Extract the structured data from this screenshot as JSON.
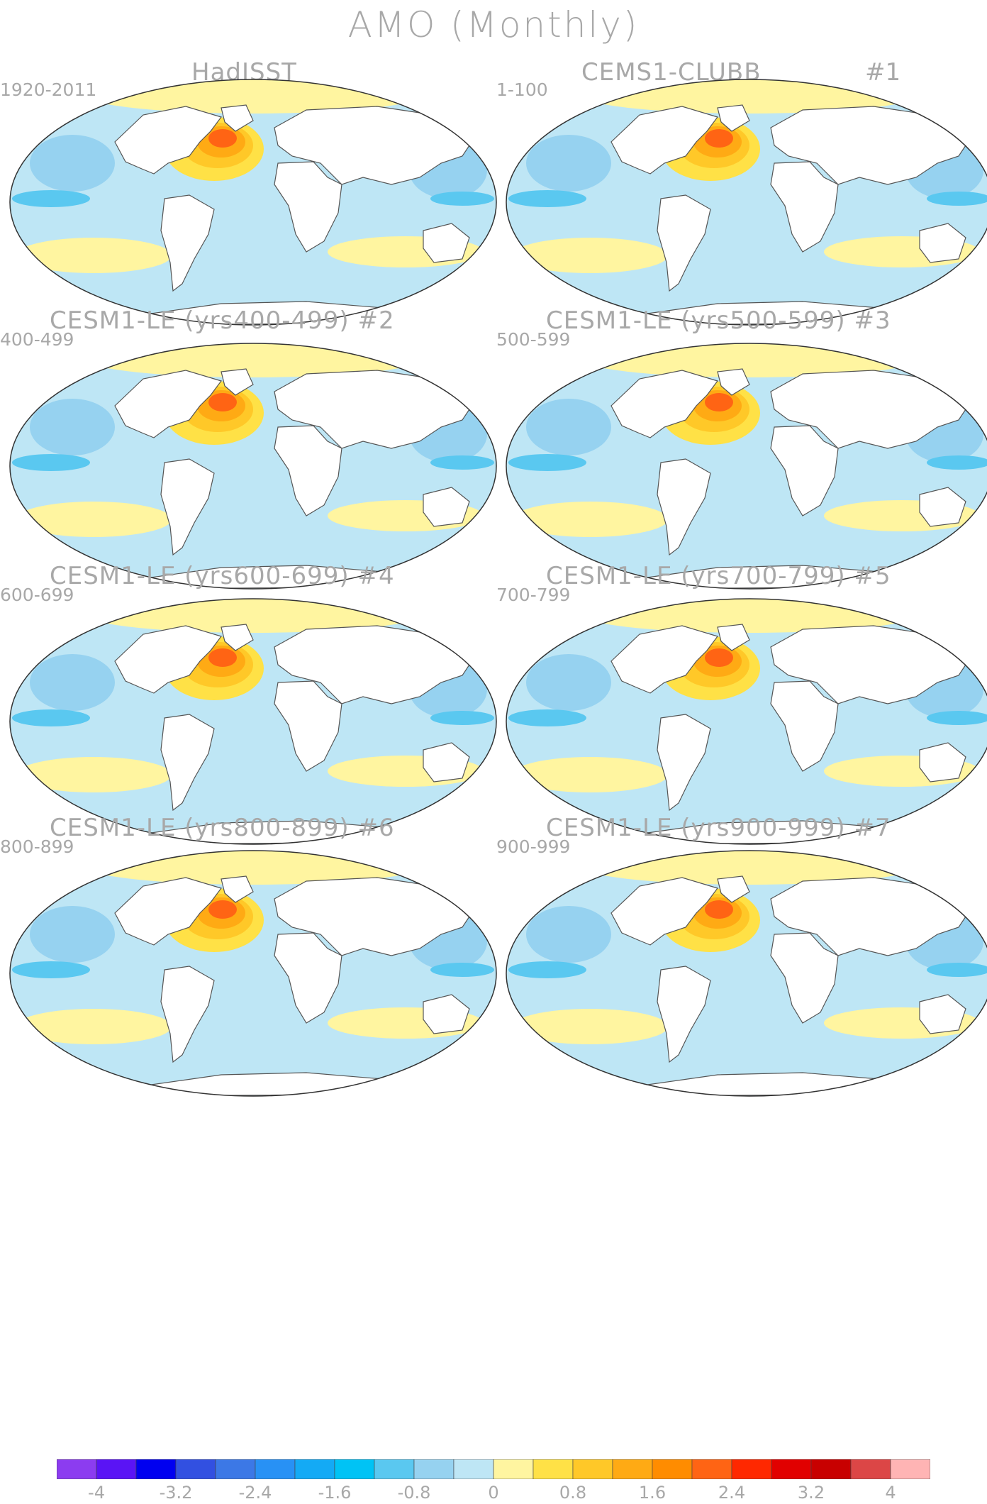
{
  "title": "AMO (Monthly)",
  "panels": [
    {
      "title": "HadISST",
      "tag": "",
      "years": "1920-2011"
    },
    {
      "title": "CEMS1-CLUBB",
      "tag": "#1",
      "years": "1-100"
    },
    {
      "title": "CESM1-LE (yrs400-499)",
      "tag": "#2",
      "years": "400-499"
    },
    {
      "title": "CESM1-LE (yrs500-599)",
      "tag": "#3",
      "years": "500-599"
    },
    {
      "title": "CESM1-LE (yrs600-699)",
      "tag": "#4",
      "years": "600-699"
    },
    {
      "title": "CESM1-LE (yrs700-799)",
      "tag": "#5",
      "years": "700-799"
    },
    {
      "title": "CESM1-LE (yrs800-899)",
      "tag": "#6",
      "years": "800-899"
    },
    {
      "title": "CESM1-LE (yrs900-999)",
      "tag": "#7",
      "years": "900-999"
    }
  ],
  "colorbar": {
    "colors": [
      "#8c3cf0",
      "#5a14f5",
      "#0000f0",
      "#3250e1",
      "#3c78e6",
      "#2891f5",
      "#14aaf5",
      "#00c3f5",
      "#5ac8f0",
      "#96d2f0",
      "#bee6f5",
      "#fff5a0",
      "#ffe146",
      "#ffc828",
      "#ffaa14",
      "#ff8c00",
      "#ff6414",
      "#ff2800",
      "#e10000",
      "#c80000",
      "#dc4646",
      "#ffb4b4"
    ],
    "labels": [
      "-4",
      "-3.2",
      "-2.4",
      "-1.6",
      "-0.8",
      "0",
      "0.8",
      "1.6",
      "2.4",
      "3.2",
      "4"
    ]
  }
}
